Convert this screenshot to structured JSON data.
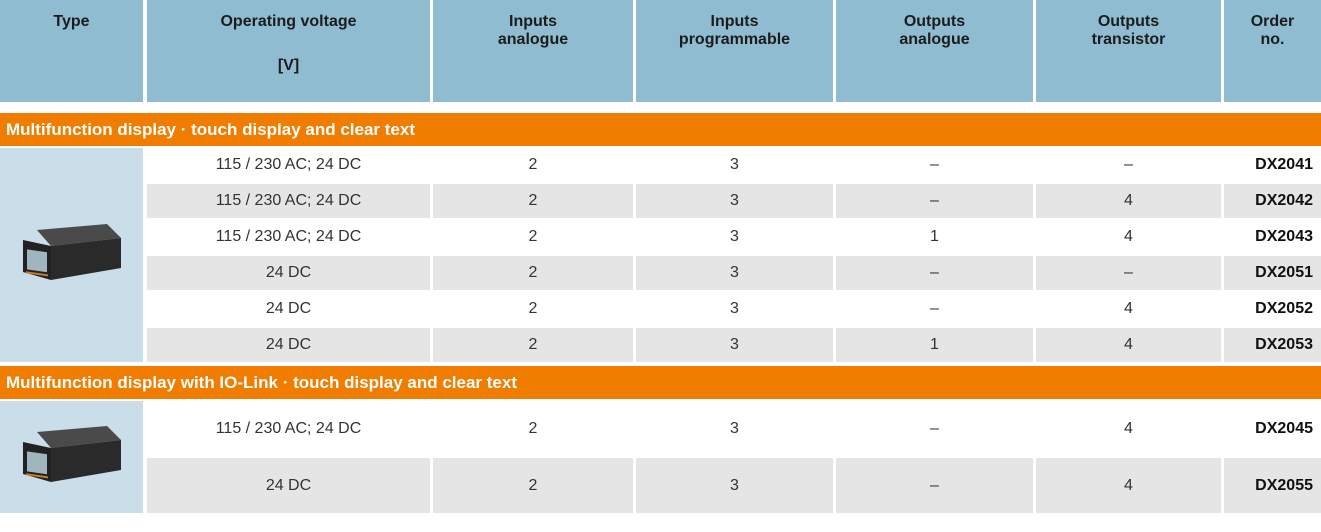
{
  "header": {
    "columns": [
      [
        "Type"
      ],
      [
        "Operating voltage",
        "[V]"
      ],
      [
        "Inputs",
        "analogue"
      ],
      [
        "Inputs",
        "programmable"
      ],
      [
        "Outputs",
        "analogue"
      ],
      [
        "Outputs",
        "transistor"
      ],
      [
        "Order",
        "no."
      ]
    ]
  },
  "sections": [
    {
      "title": "Multifunction display · touch display and clear text",
      "rows": [
        [
          "115 / 230 AC; 24 DC",
          "2",
          "3",
          "–",
          "–",
          "DX2041"
        ],
        [
          "115 / 230 AC; 24 DC",
          "2",
          "3",
          "–",
          "4",
          "DX2042"
        ],
        [
          "115 / 230 AC; 24 DC",
          "2",
          "3",
          "1",
          "4",
          "DX2043"
        ],
        [
          "24 DC",
          "2",
          "3",
          "–",
          "–",
          "DX2051"
        ],
        [
          "24 DC",
          "2",
          "3",
          "–",
          "4",
          "DX2052"
        ],
        [
          "24 DC",
          "2",
          "3",
          "1",
          "4",
          "DX2053"
        ]
      ]
    },
    {
      "title": "Multifunction display with IO-Link · touch display and clear text",
      "rows": [
        [
          "115 / 230 AC; 24 DC",
          "2",
          "3",
          "–",
          "4",
          "DX2045"
        ],
        [
          "24 DC",
          "2",
          "3",
          "–",
          "4",
          "DX2055"
        ]
      ]
    }
  ]
}
